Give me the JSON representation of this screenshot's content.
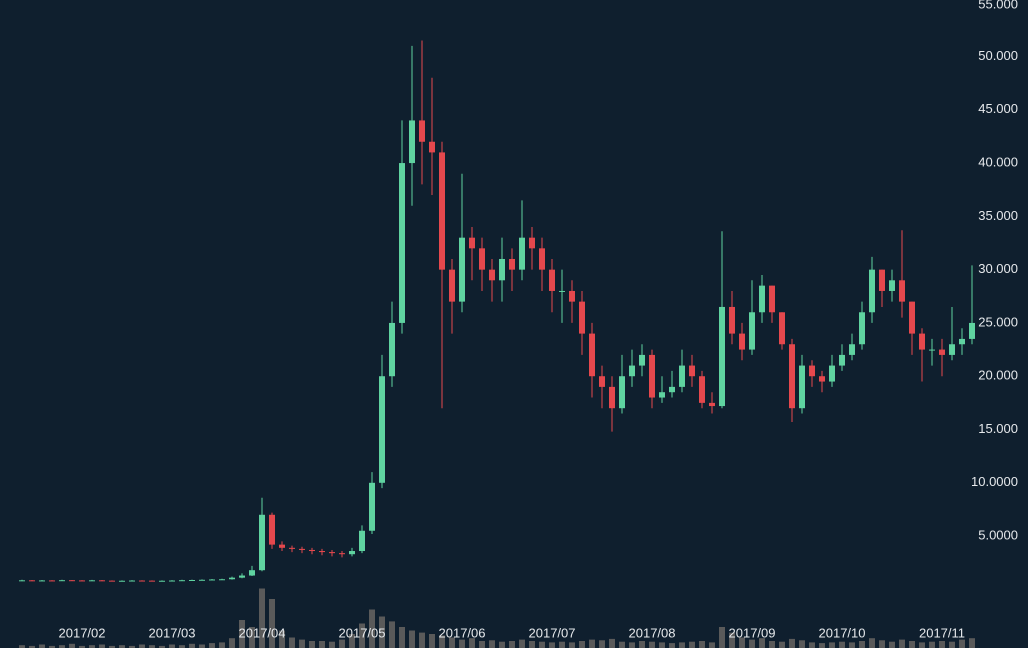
{
  "chart_data": {
    "type": "candlestick",
    "categories": [
      null,
      null,
      null,
      null,
      null,
      null,
      "2017/02",
      null,
      null,
      null,
      null,
      null,
      null,
      null,
      null,
      "2017/03",
      null,
      null,
      null,
      null,
      null,
      null,
      null,
      null,
      "2017/04",
      null,
      null,
      null,
      null,
      null,
      null,
      null,
      null,
      null,
      "2017/05",
      null,
      null,
      null,
      null,
      null,
      null,
      null,
      null,
      null,
      "2017/06",
      null,
      null,
      null,
      null,
      null,
      null,
      null,
      null,
      "2017/07",
      null,
      null,
      null,
      null,
      null,
      null,
      null,
      null,
      null,
      "2017/08",
      null,
      null,
      null,
      null,
      null,
      null,
      null,
      null,
      null,
      "2017/09",
      null,
      null,
      null,
      null,
      null,
      null,
      null,
      null,
      "2017/10",
      null,
      null,
      null,
      null,
      null,
      null,
      null,
      null,
      null,
      "2017/11",
      null,
      null,
      null
    ],
    "open": [
      0.84,
      0.85,
      0.82,
      0.84,
      0.83,
      0.86,
      0.84,
      0.83,
      0.85,
      0.82,
      0.8,
      0.81,
      0.83,
      0.82,
      0.8,
      0.81,
      0.83,
      0.86,
      0.88,
      0.9,
      0.93,
      0.95,
      1.1,
      1.3,
      1.8,
      7,
      4.2,
      3.9,
      3.8,
      3.7,
      3.6,
      3.5,
      3.4,
      3.3,
      3.6,
      5.5,
      10,
      20,
      25,
      40,
      44,
      42,
      41,
      30,
      27,
      33,
      32,
      30,
      29,
      31,
      30,
      33,
      32,
      30,
      28,
      28,
      27,
      24,
      20,
      19,
      17,
      20,
      21,
      22,
      18,
      18.5,
      19,
      21,
      20,
      17.5,
      17.2,
      26.5,
      24,
      22.5,
      26,
      28.5,
      26,
      23,
      17,
      21,
      20,
      19.5,
      21,
      22,
      23,
      26,
      30,
      28,
      29,
      27,
      24,
      22.5,
      22.5,
      22,
      23,
      23.5
    ],
    "high": [
      0.9,
      0.88,
      0.88,
      0.87,
      0.9,
      0.88,
      0.87,
      0.89,
      0.88,
      0.85,
      0.85,
      0.87,
      0.86,
      0.84,
      0.85,
      0.87,
      0.9,
      0.92,
      0.94,
      0.97,
      1,
      1.2,
      1.5,
      2.2,
      8.6,
      7.2,
      4.5,
      4.1,
      4,
      3.9,
      3.8,
      3.7,
      3.6,
      3.9,
      6,
      11,
      22,
      27,
      44,
      51,
      51.5,
      48,
      42,
      31,
      39,
      34,
      33,
      31,
      33,
      32,
      36.5,
      34,
      33,
      31,
      30,
      29,
      28,
      25,
      21,
      20,
      22,
      22.5,
      23,
      22.5,
      20,
      20.5,
      22.5,
      22,
      20.5,
      18.5,
      33.6,
      28,
      25,
      29,
      29.5,
      28.5,
      26,
      23.5,
      22,
      21.5,
      20.5,
      22,
      23,
      24,
      27,
      31.2,
      30,
      30,
      33.7,
      27,
      24.5,
      23.5,
      23.5,
      26.5,
      24.5,
      30.4
    ],
    "low": [
      0.78,
      0.78,
      0.8,
      0.79,
      0.8,
      0.8,
      0.79,
      0.8,
      0.78,
      0.76,
      0.77,
      0.79,
      0.78,
      0.76,
      0.77,
      0.79,
      0.81,
      0.84,
      0.86,
      0.88,
      0.9,
      0.92,
      1.05,
      1.25,
      1.7,
      3.8,
      3.6,
      3.5,
      3.4,
      3.3,
      3.2,
      3.1,
      3,
      3.1,
      3.4,
      5.2,
      9.5,
      19,
      24,
      36,
      38,
      37,
      17,
      24,
      26,
      29,
      28,
      27,
      27,
      28,
      29,
      30,
      28,
      26,
      25,
      25,
      22,
      18,
      17,
      14.8,
      16.5,
      19,
      20,
      17,
      17.5,
      18,
      18.5,
      19,
      17,
      16.5,
      17,
      23,
      21.5,
      22,
      25,
      25,
      22.5,
      15.7,
      16.5,
      19,
      18.5,
      19,
      20.5,
      21.5,
      22.5,
      25,
      26.5,
      27,
      25.5,
      22,
      19.5,
      21,
      20,
      21.5,
      22,
      23
    ],
    "close": [
      0.85,
      0.82,
      0.84,
      0.83,
      0.86,
      0.84,
      0.83,
      0.85,
      0.82,
      0.8,
      0.81,
      0.83,
      0.82,
      0.8,
      0.81,
      0.83,
      0.86,
      0.88,
      0.9,
      0.93,
      0.95,
      1.1,
      1.3,
      1.8,
      7,
      4.2,
      3.9,
      3.8,
      3.7,
      3.6,
      3.5,
      3.4,
      3.3,
      3.6,
      5.5,
      10,
      20,
      25,
      40,
      44,
      42,
      41,
      30,
      27,
      33,
      32,
      30,
      29,
      31,
      30,
      33,
      32,
      30,
      28,
      28,
      27,
      24,
      20,
      19,
      17,
      20,
      21,
      22,
      18,
      18.5,
      19,
      21,
      20,
      17.5,
      17.2,
      26.5,
      24,
      22.5,
      26,
      28.5,
      26,
      23,
      17,
      21,
      20,
      19.5,
      21,
      22,
      23,
      26,
      30,
      28,
      29,
      27,
      24,
      22.5,
      22.5,
      22,
      23,
      23.5,
      25
    ],
    "volume": [
      4,
      3,
      5,
      3,
      4,
      6,
      3,
      4,
      5,
      3,
      4,
      3,
      5,
      4,
      3,
      5,
      4,
      6,
      5,
      7,
      8,
      14,
      40,
      30,
      85,
      70,
      25,
      15,
      12,
      10,
      10,
      9,
      12,
      20,
      35,
      55,
      45,
      38,
      30,
      25,
      22,
      20,
      18,
      15,
      12,
      14,
      10,
      11,
      9,
      10,
      12,
      10,
      9,
      8,
      9,
      8,
      10,
      12,
      11,
      13,
      9,
      8,
      10,
      9,
      8,
      7,
      8,
      9,
      10,
      8,
      30,
      22,
      15,
      12,
      14,
      10,
      9,
      13,
      11,
      8,
      7,
      8,
      9,
      8,
      10,
      14,
      11,
      9,
      12,
      10,
      8,
      9,
      10,
      9,
      12,
      14
    ],
    "ylim": [
      -5.5,
      55.3
    ],
    "yticks": [
      {
        "value": 5,
        "label": "5.0000"
      },
      {
        "value": 10,
        "label": "10.0000"
      },
      {
        "value": 15,
        "label": "15.000"
      },
      {
        "value": 20,
        "label": "20.000"
      },
      {
        "value": 25,
        "label": "25.000"
      },
      {
        "value": 30,
        "label": "30.000"
      },
      {
        "value": 35,
        "label": "35.000"
      },
      {
        "value": 40,
        "label": "40.000"
      },
      {
        "value": 45,
        "label": "45.000"
      },
      {
        "value": 50,
        "label": "50.000"
      },
      {
        "value": 55,
        "label": "55.000"
      }
    ],
    "volume_ylim": [
      0,
      100
    ],
    "up_color": "#5fd3a0",
    "down_color": "#e5484d",
    "volume_color": "#5a5a5a"
  }
}
